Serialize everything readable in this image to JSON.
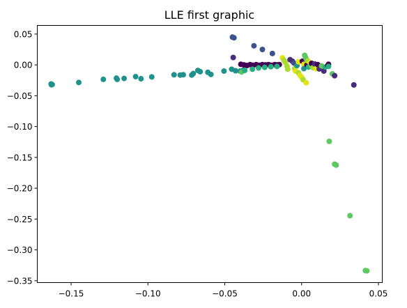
{
  "chart_data": {
    "type": "scatter",
    "title": "LLE first graphic",
    "xlabel": "",
    "ylabel": "",
    "xlim": [
      -0.172,
      0.0525
    ],
    "ylim": [
      -0.353,
      0.064
    ],
    "x_ticks": [
      -0.15,
      -0.1,
      -0.05,
      0.0,
      0.05
    ],
    "x_tick_labels": [
      "−0.15",
      "−0.10",
      "−0.05",
      "0.00",
      "0.05"
    ],
    "y_ticks": [
      0.05,
      0.0,
      -0.05,
      -0.1,
      -0.15,
      -0.2,
      -0.25,
      -0.3,
      -0.35
    ],
    "y_tick_labels": [
      "0.05",
      "0.00",
      "−0.05",
      "−0.10",
      "−0.15",
      "−0.20",
      "−0.25",
      "−0.30",
      "−0.35"
    ],
    "grid": false,
    "legend": "none",
    "colormap": "viridis",
    "palette": {
      "c0": "#440154",
      "c1": "#472d7b",
      "c2": "#3b528b",
      "c3": "#2c728e",
      "c4": "#21918c",
      "c5": "#28ae80",
      "c6": "#5ec962",
      "c7": "#addc30",
      "c8": "#e2e418"
    },
    "points": [
      {
        "x": -0.163,
        "y": -0.031,
        "c": "c4"
      },
      {
        "x": -0.1628,
        "y": -0.0322,
        "c": "c4"
      },
      {
        "x": -0.1623,
        "y": -0.0318,
        "c": "c4"
      },
      {
        "x": -0.145,
        "y": -0.0285,
        "c": "c4"
      },
      {
        "x": -0.129,
        "y": -0.0235,
        "c": "c4"
      },
      {
        "x": -0.1205,
        "y": -0.0215,
        "c": "c4"
      },
      {
        "x": -0.12,
        "y": -0.0235,
        "c": "c4"
      },
      {
        "x": -0.1155,
        "y": -0.022,
        "c": "c4"
      },
      {
        "x": -0.108,
        "y": -0.019,
        "c": "c4"
      },
      {
        "x": -0.1045,
        "y": -0.0225,
        "c": "c4"
      },
      {
        "x": -0.0975,
        "y": -0.0195,
        "c": "c4"
      },
      {
        "x": -0.083,
        "y": -0.016,
        "c": "c4"
      },
      {
        "x": -0.079,
        "y": -0.0165,
        "c": "c4"
      },
      {
        "x": -0.077,
        "y": -0.016,
        "c": "c4"
      },
      {
        "x": -0.0715,
        "y": -0.0165,
        "c": "c4"
      },
      {
        "x": -0.0705,
        "y": -0.014,
        "c": "c4"
      },
      {
        "x": -0.0675,
        "y": -0.009,
        "c": "c4"
      },
      {
        "x": -0.066,
        "y": -0.011,
        "c": "c4"
      },
      {
        "x": -0.061,
        "y": -0.012,
        "c": "c4"
      },
      {
        "x": -0.059,
        "y": -0.0155,
        "c": "c4"
      },
      {
        "x": -0.0505,
        "y": -0.01,
        "c": "c4"
      },
      {
        "x": -0.0455,
        "y": -0.007,
        "c": "c4"
      },
      {
        "x": -0.043,
        "y": -0.0095,
        "c": "c4"
      },
      {
        "x": -0.04,
        "y": -0.01,
        "c": "c4"
      },
      {
        "x": -0.038,
        "y": -0.0085,
        "c": "c4"
      },
      {
        "x": -0.045,
        "y": 0.045,
        "c": "c2"
      },
      {
        "x": -0.044,
        "y": 0.044,
        "c": "c2"
      },
      {
        "x": -0.031,
        "y": 0.031,
        "c": "c2"
      },
      {
        "x": -0.0255,
        "y": 0.025,
        "c": "c2"
      },
      {
        "x": -0.019,
        "y": 0.0185,
        "c": "c2"
      },
      {
        "x": -0.0445,
        "y": 0.012,
        "c": "c1"
      },
      {
        "x": -0.0395,
        "y": 0.001,
        "c": "c0"
      },
      {
        "x": -0.0375,
        "y": 0.0,
        "c": "c0"
      },
      {
        "x": -0.0355,
        "y": -0.001,
        "c": "c0"
      },
      {
        "x": -0.0335,
        "y": 0.0005,
        "c": "c0"
      },
      {
        "x": -0.0315,
        "y": -0.0005,
        "c": "c0"
      },
      {
        "x": -0.0295,
        "y": 0.0005,
        "c": "c0"
      },
      {
        "x": -0.0275,
        "y": -0.0005,
        "c": "c0"
      },
      {
        "x": -0.0255,
        "y": 0.0005,
        "c": "c0"
      },
      {
        "x": -0.0235,
        "y": 0.0,
        "c": "c0"
      },
      {
        "x": -0.0215,
        "y": 0.0005,
        "c": "c0"
      },
      {
        "x": -0.0195,
        "y": -0.0005,
        "c": "c0"
      },
      {
        "x": -0.0175,
        "y": 0.0005,
        "c": "c0"
      },
      {
        "x": -0.016,
        "y": 0.0,
        "c": "c0"
      },
      {
        "x": -0.0145,
        "y": 0.0005,
        "c": "c0"
      },
      {
        "x": -0.039,
        "y": -0.0115,
        "c": "c6"
      },
      {
        "x": -0.037,
        "y": -0.009,
        "c": "c5"
      },
      {
        "x": -0.032,
        "y": -0.007,
        "c": "c5"
      },
      {
        "x": -0.028,
        "y": -0.005,
        "c": "c5"
      },
      {
        "x": -0.024,
        "y": -0.004,
        "c": "c5"
      },
      {
        "x": -0.02,
        "y": -0.003,
        "c": "c5"
      },
      {
        "x": -0.016,
        "y": -0.0025,
        "c": "c5"
      },
      {
        "x": -0.0125,
        "y": 0.0115,
        "c": "c8"
      },
      {
        "x": -0.0115,
        "y": 0.0075,
        "c": "c7"
      },
      {
        "x": -0.0105,
        "y": 0.004,
        "c": "c7"
      },
      {
        "x": -0.0095,
        "y": -0.002,
        "c": "c7"
      },
      {
        "x": -0.009,
        "y": -0.007,
        "c": "c7"
      },
      {
        "x": -0.0075,
        "y": 0.0085,
        "c": "c1"
      },
      {
        "x": -0.006,
        "y": 0.006,
        "c": "c1"
      },
      {
        "x": -0.005,
        "y": 0.003,
        "c": "c2"
      },
      {
        "x": -0.0045,
        "y": -0.006,
        "c": "c7"
      },
      {
        "x": -0.004,
        "y": -0.01,
        "c": "c8"
      },
      {
        "x": -0.003,
        "y": -0.001,
        "c": "c4"
      },
      {
        "x": -0.002,
        "y": 0.005,
        "c": "c8"
      },
      {
        "x": -0.002,
        "y": -0.013,
        "c": "c7"
      },
      {
        "x": -0.001,
        "y": -0.017,
        "c": "c8"
      },
      {
        "x": 0.0,
        "y": -0.02,
        "c": "c8"
      },
      {
        "x": 0.0005,
        "y": 0.006,
        "c": "c0"
      },
      {
        "x": 0.001,
        "y": -0.024,
        "c": "c7"
      },
      {
        "x": 0.0015,
        "y": 0.001,
        "c": "c8"
      },
      {
        "x": 0.0015,
        "y": -0.006,
        "c": "c4"
      },
      {
        "x": 0.002,
        "y": 0.0155,
        "c": "c6"
      },
      {
        "x": 0.0025,
        "y": 0.0125,
        "c": "c6"
      },
      {
        "x": 0.003,
        "y": 0.0095,
        "c": "c6"
      },
      {
        "x": 0.003,
        "y": -0.029,
        "c": "c8"
      },
      {
        "x": 0.0035,
        "y": 0.0,
        "c": "c0"
      },
      {
        "x": 0.004,
        "y": 0.0065,
        "c": "c7"
      },
      {
        "x": 0.0045,
        "y": -0.0035,
        "c": "c5"
      },
      {
        "x": 0.0055,
        "y": 0.0035,
        "c": "c8"
      },
      {
        "x": 0.006,
        "y": -0.001,
        "c": "c6"
      },
      {
        "x": 0.0065,
        "y": 0.0025,
        "c": "c0"
      },
      {
        "x": 0.0075,
        "y": -0.0045,
        "c": "c7"
      },
      {
        "x": 0.0085,
        "y": 0.0015,
        "c": "c1"
      },
      {
        "x": 0.0095,
        "y": -0.006,
        "c": "c8"
      },
      {
        "x": 0.0105,
        "y": 0.0005,
        "c": "c0"
      },
      {
        "x": 0.0115,
        "y": -0.0065,
        "c": "c1"
      },
      {
        "x": 0.013,
        "y": -0.0015,
        "c": "c6"
      },
      {
        "x": 0.0145,
        "y": -0.01,
        "c": "c1"
      },
      {
        "x": 0.0155,
        "y": -0.0035,
        "c": "c5"
      },
      {
        "x": 0.017,
        "y": -0.001,
        "c": "c0"
      },
      {
        "x": 0.0175,
        "y": 0.001,
        "c": "c0"
      },
      {
        "x": 0.0175,
        "y": -0.0025,
        "c": "c5"
      },
      {
        "x": 0.02,
        "y": -0.0145,
        "c": "c6"
      },
      {
        "x": 0.0215,
        "y": -0.0175,
        "c": "c1"
      },
      {
        "x": 0.034,
        "y": -0.0325,
        "c": "c1"
      },
      {
        "x": 0.018,
        "y": -0.124,
        "c": "c6"
      },
      {
        "x": 0.0215,
        "y": -0.161,
        "c": "c6"
      },
      {
        "x": 0.0225,
        "y": -0.1625,
        "c": "c6"
      },
      {
        "x": 0.0315,
        "y": -0.2445,
        "c": "c6"
      },
      {
        "x": 0.0415,
        "y": -0.3335,
        "c": "c6"
      },
      {
        "x": 0.0425,
        "y": -0.334,
        "c": "c6"
      }
    ]
  }
}
